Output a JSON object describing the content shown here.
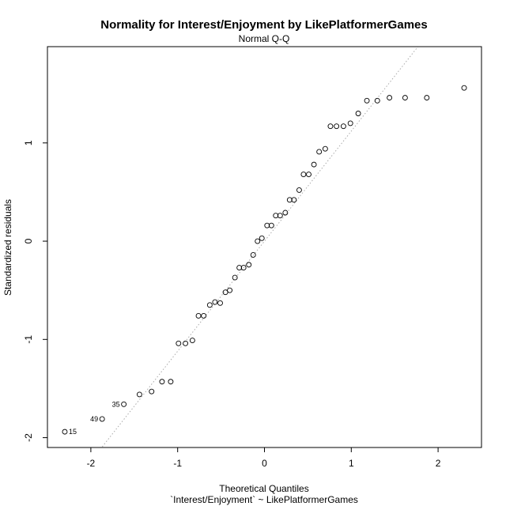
{
  "chart_data": {
    "type": "scatter",
    "title": "Normality for Interest/Enjoyment by LikePlatformerGames",
    "subtitle": "Normal Q-Q",
    "xlabel": "Theoretical Quantiles",
    "xlabel2": "`Interest/Enjoyment` ~ LikePlatformerGames",
    "ylabel": "Standardized residuals",
    "xlim": [
      -2.5,
      2.5
    ],
    "ylim": [
      -2.1,
      1.98
    ],
    "x_ticks": [
      -2,
      -1,
      0,
      1,
      2
    ],
    "x_tick_labels": [
      "-2",
      "-1",
      "0",
      "1",
      "2"
    ],
    "y_ticks": [
      -2,
      -1,
      0,
      1
    ],
    "y_tick_labels": [
      "-2",
      "-1",
      "0",
      "1"
    ],
    "grid": false,
    "reference_line": {
      "slope": 1.12,
      "intercept": 0.0,
      "style": "dotted",
      "color": "#aaaaaa"
    },
    "points": [
      {
        "x": -2.3,
        "y": -1.94,
        "label": "15"
      },
      {
        "x": -1.87,
        "y": -1.81,
        "label": "49"
      },
      {
        "x": -1.62,
        "y": -1.66,
        "label": "35"
      },
      {
        "x": -1.44,
        "y": -1.56
      },
      {
        "x": -1.3,
        "y": -1.53
      },
      {
        "x": -1.18,
        "y": -1.43
      },
      {
        "x": -1.08,
        "y": -1.43
      },
      {
        "x": -0.99,
        "y": -1.04
      },
      {
        "x": -0.91,
        "y": -1.04
      },
      {
        "x": -0.83,
        "y": -1.01
      },
      {
        "x": -0.76,
        "y": -0.76
      },
      {
        "x": -0.7,
        "y": -0.76
      },
      {
        "x": -0.63,
        "y": -0.65
      },
      {
        "x": -0.57,
        "y": -0.62
      },
      {
        "x": -0.51,
        "y": -0.63
      },
      {
        "x": -0.45,
        "y": -0.52
      },
      {
        "x": -0.4,
        "y": -0.5
      },
      {
        "x": -0.34,
        "y": -0.37
      },
      {
        "x": -0.29,
        "y": -0.27
      },
      {
        "x": -0.24,
        "y": -0.27
      },
      {
        "x": -0.18,
        "y": -0.24
      },
      {
        "x": -0.13,
        "y": -0.14
      },
      {
        "x": -0.08,
        "y": 0.0
      },
      {
        "x": -0.03,
        "y": 0.03
      },
      {
        "x": 0.03,
        "y": 0.16
      },
      {
        "x": 0.08,
        "y": 0.16
      },
      {
        "x": 0.13,
        "y": 0.26
      },
      {
        "x": 0.18,
        "y": 0.26
      },
      {
        "x": 0.24,
        "y": 0.29
      },
      {
        "x": 0.29,
        "y": 0.42
      },
      {
        "x": 0.34,
        "y": 0.42
      },
      {
        "x": 0.4,
        "y": 0.52
      },
      {
        "x": 0.45,
        "y": 0.68
      },
      {
        "x": 0.51,
        "y": 0.68
      },
      {
        "x": 0.57,
        "y": 0.78
      },
      {
        "x": 0.63,
        "y": 0.91
      },
      {
        "x": 0.7,
        "y": 0.94
      },
      {
        "x": 0.76,
        "y": 1.17
      },
      {
        "x": 0.83,
        "y": 1.17
      },
      {
        "x": 0.91,
        "y": 1.17
      },
      {
        "x": 0.99,
        "y": 1.2
      },
      {
        "x": 1.08,
        "y": 1.3
      },
      {
        "x": 1.18,
        "y": 1.43
      },
      {
        "x": 1.3,
        "y": 1.43
      },
      {
        "x": 1.44,
        "y": 1.46
      },
      {
        "x": 1.62,
        "y": 1.46
      },
      {
        "x": 1.87,
        "y": 1.46
      },
      {
        "x": 2.3,
        "y": 1.56
      }
    ]
  },
  "colors": {
    "points": "#000000",
    "reference_line": "#aaaaaa",
    "axis": "#000000",
    "background": "#ffffff"
  }
}
